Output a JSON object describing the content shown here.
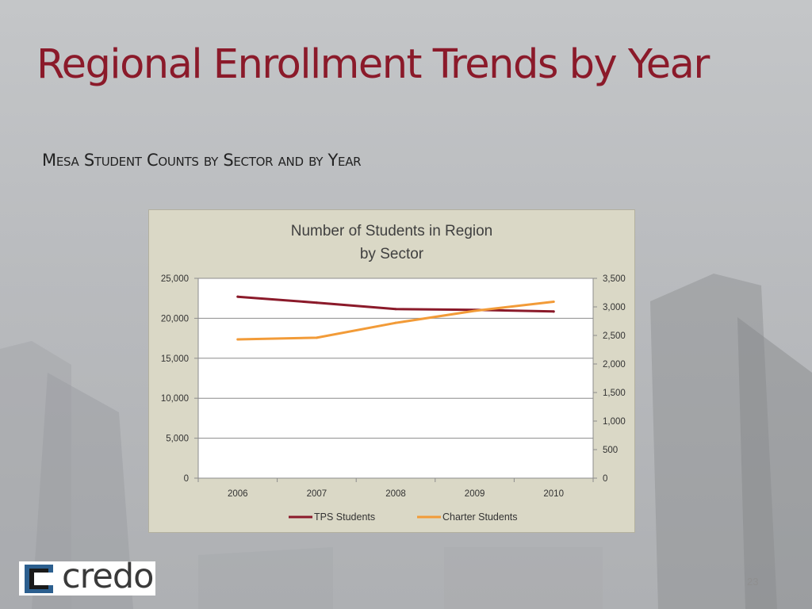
{
  "slide": {
    "title": "Regional Enrollment Trends by Year",
    "subtitle": "Mesa Student Counts by Sector and by Year",
    "page_number": "23",
    "logo_text": "credo",
    "colors": {
      "title": "#8b1a2a",
      "panel": "#dad8c6",
      "plot": "#ffffff"
    }
  },
  "chart_data": {
    "type": "line",
    "title": "Number of Students in Region by Sector",
    "title_lines": [
      "Number of Students in Region",
      "by Sector"
    ],
    "categories": [
      "2006",
      "2007",
      "2008",
      "2009",
      "2010"
    ],
    "y_left": {
      "lim": [
        0,
        25000
      ],
      "ticks": [
        0,
        5000,
        10000,
        15000,
        20000,
        25000
      ],
      "tick_labels": [
        "0",
        "5,000",
        "10,000",
        "15,000",
        "20,000",
        "25,000"
      ]
    },
    "y_right": {
      "lim": [
        0,
        3500
      ],
      "ticks": [
        0,
        500,
        1000,
        1500,
        2000,
        2500,
        3000,
        3500
      ],
      "tick_labels": [
        "0",
        "500",
        "1,000",
        "1,500",
        "2,000",
        "2,500",
        "3,000",
        "3,500"
      ]
    },
    "series": [
      {
        "name": "TPS Students",
        "axis": "left",
        "color": "#8b1a2a",
        "values": [
          22700,
          21950,
          21150,
          21050,
          20850
        ]
      },
      {
        "name": "Charter Students",
        "axis": "right",
        "color": "#f29b38",
        "values": [
          2430,
          2460,
          2720,
          2930,
          3090
        ]
      }
    ],
    "grid": true,
    "legend": "bottom"
  }
}
